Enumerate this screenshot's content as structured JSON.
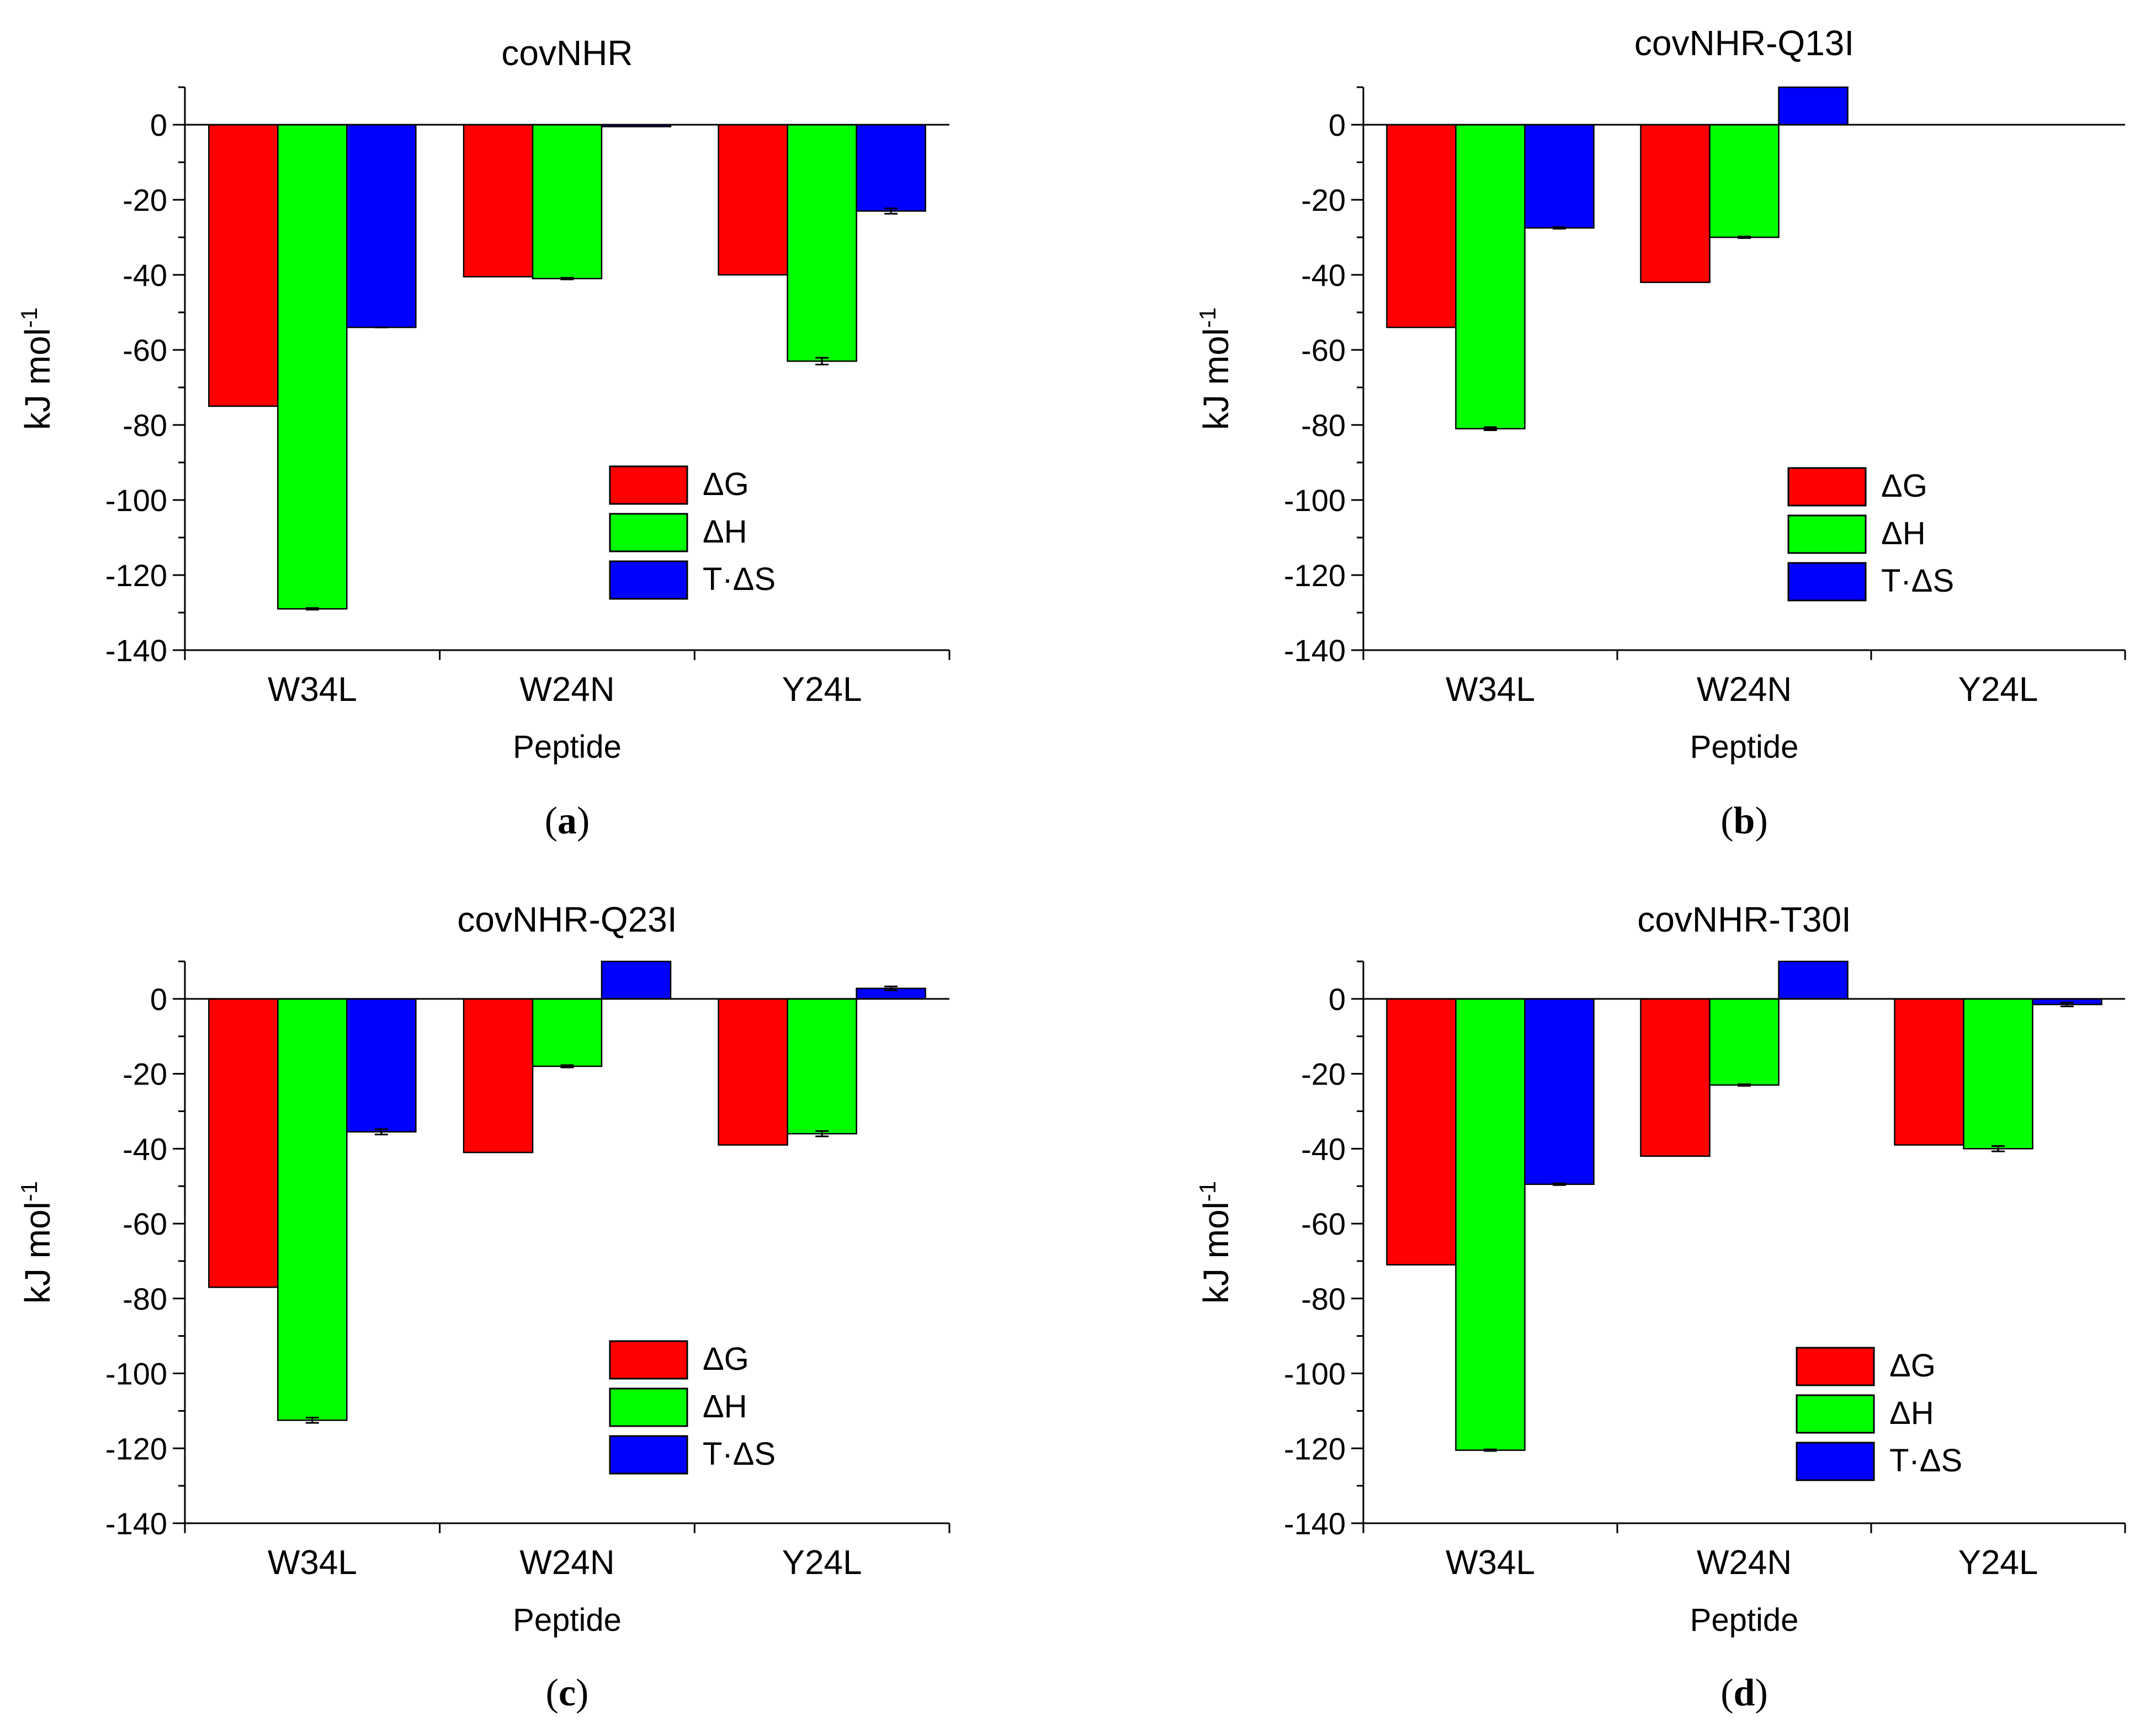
{
  "colors": {
    "dG": "#ff0000",
    "dH": "#00ff00",
    "TdS": "#0000ff",
    "axis": "#000000"
  },
  "chart_data": [
    {
      "type": "bar",
      "title": "covNHR",
      "panel_label": "a",
      "xlabel": "Peptide",
      "ylabel": "kJ mol",
      "ylabel_sup": "-1",
      "ylim": [
        -140,
        10
      ],
      "yticks": [
        0,
        -20,
        -40,
        -60,
        -80,
        -100,
        -120,
        -140
      ],
      "categories": [
        "W34L",
        "W24N",
        "Y24L"
      ],
      "legend_position": "lower-right",
      "series": [
        {
          "name": "ΔG",
          "color_key": "dG",
          "values": [
            -75,
            -40.5,
            -40
          ],
          "errors": [
            0,
            0,
            0
          ]
        },
        {
          "name": "ΔH",
          "color_key": "dH",
          "values": [
            -129,
            -41,
            -63
          ],
          "errors": [
            0.5,
            0.5,
            1.2
          ]
        },
        {
          "name": "T·ΔS",
          "color_key": "TdS",
          "values": [
            -54,
            -0.5,
            -23
          ],
          "errors": [
            0.3,
            0,
            1.0
          ]
        }
      ]
    },
    {
      "type": "bar",
      "title": "covNHR-Q13I",
      "panel_label": "b",
      "xlabel": "Peptide",
      "ylabel": "kJ mol",
      "ylabel_sup": "-1",
      "ylim": [
        -140,
        10
      ],
      "yticks": [
        0,
        -20,
        -40,
        -60,
        -80,
        -100,
        -120,
        -140
      ],
      "categories": [
        "W34L",
        "W24N",
        "Y24L"
      ],
      "legend_position": "lower-right",
      "series": [
        {
          "name": "ΔG",
          "color_key": "dG",
          "values": [
            -54,
            -42,
            null
          ],
          "errors": [
            0,
            0,
            0
          ]
        },
        {
          "name": "ΔH",
          "color_key": "dH",
          "values": [
            -81,
            -30,
            null
          ],
          "errors": [
            0.7,
            0.5,
            0
          ]
        },
        {
          "name": "T·ΔS",
          "color_key": "TdS",
          "values": [
            -27.5,
            12,
            null
          ],
          "errors": [
            0.5,
            0,
            0
          ]
        }
      ]
    },
    {
      "type": "bar",
      "title": "covNHR-Q23I",
      "panel_label": "c",
      "xlabel": "Peptide",
      "ylabel": "kJ mol",
      "ylabel_sup": "-1",
      "ylim": [
        -140,
        10
      ],
      "yticks": [
        0,
        -20,
        -40,
        -60,
        -80,
        -100,
        -120,
        -140
      ],
      "categories": [
        "W34L",
        "W24N",
        "Y24L"
      ],
      "legend_position": "lower-right",
      "series": [
        {
          "name": "ΔG",
          "color_key": "dG",
          "values": [
            -77,
            -41,
            -39
          ],
          "errors": [
            0,
            0,
            0
          ]
        },
        {
          "name": "ΔH",
          "color_key": "dH",
          "values": [
            -112.5,
            -18,
            -36
          ],
          "errors": [
            1.0,
            0.6,
            1.0
          ]
        },
        {
          "name": "T·ΔS",
          "color_key": "TdS",
          "values": [
            -35.5,
            12,
            2.8
          ],
          "errors": [
            1.0,
            0,
            0.8
          ]
        }
      ]
    },
    {
      "type": "bar",
      "title": "covNHR-T30I",
      "panel_label": "d",
      "xlabel": "Peptide",
      "ylabel": "kJ mol",
      "ylabel_sup": "-1",
      "ylim": [
        -140,
        10
      ],
      "yticks": [
        0,
        -20,
        -40,
        -60,
        -80,
        -100,
        -120,
        -140
      ],
      "categories": [
        "W34L",
        "W24N",
        "Y24L"
      ],
      "legend_position": "lower-right",
      "series": [
        {
          "name": "ΔG",
          "color_key": "dG",
          "values": [
            -71,
            -42,
            -39
          ],
          "errors": [
            0,
            0,
            0
          ]
        },
        {
          "name": "ΔH",
          "color_key": "dH",
          "values": [
            -120.5,
            -23,
            -40
          ],
          "errors": [
            0.5,
            0.5,
            1.0
          ]
        },
        {
          "name": "T·ΔS",
          "color_key": "TdS",
          "values": [
            -49.5,
            12,
            -1.5
          ],
          "errors": [
            0.5,
            0,
            0.8
          ]
        }
      ]
    }
  ]
}
